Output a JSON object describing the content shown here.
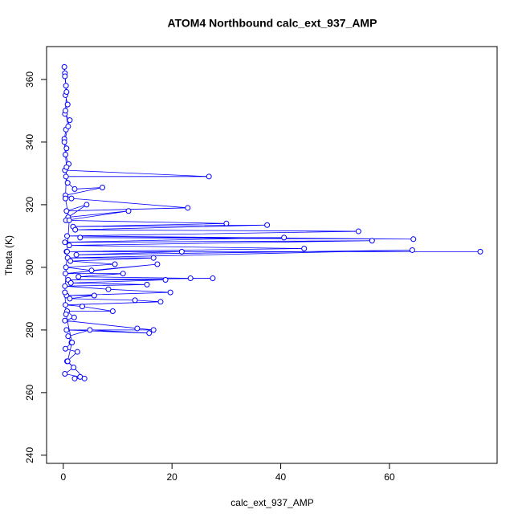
{
  "chart_data": {
    "type": "line",
    "title": "ATOM4 Northbound calc_ext_937_AMP",
    "x_label": "calc_ext_937_AMP",
    "y_label": "Theta (K)",
    "color": "#0000ff",
    "marker": "circle",
    "x": [
      0.2,
      0.3,
      0.5,
      0.4,
      0.8,
      0.3,
      1.2,
      0.5,
      0.2,
      0.6,
      0.4,
      1.0,
      0.3,
      26.8,
      0.5,
      0.8,
      2.1,
      7.2,
      0.4,
      1.5,
      22.9,
      0.6,
      4.3,
      0.9,
      12,
      0.5,
      30,
      1.8,
      37.5,
      2.2,
      54.3,
      0.7,
      64.4,
      3.1,
      40.6,
      0.3,
      56.8,
      1.1,
      44.3,
      0.6,
      76.7,
      21.8,
      2.4,
      64.2,
      0.8,
      16.6,
      1.3,
      9.5,
      0.5,
      5.2,
      17.3,
      0.4,
      11,
      2.8,
      23.4,
      27.5,
      0.9,
      18.8,
      1.4,
      15.4,
      0.3,
      8.3,
      19.7,
      0.6,
      5.7,
      1.2,
      13.2,
      17.9,
      0.4,
      3.5,
      9.1,
      0.7,
      2.0,
      0.3,
      13.6,
      16.6,
      0.6,
      15.8,
      4.9,
      0.9,
      1.5,
      0.4,
      2.6,
      0.7,
      1.9,
      0.3,
      3.1,
      2.1,
      3.9,
      0.8,
      1.6,
      0.5,
      0.3,
      0.7,
      1.1,
      0.4,
      0.6,
      0.2,
      0.9,
      0.4,
      0.6,
      0.3
    ],
    "values": [
      364,
      362,
      358,
      355,
      352,
      349,
      347,
      344,
      341,
      338,
      336,
      333,
      331,
      329,
      329,
      327,
      325,
      325.5,
      323,
      322,
      319,
      318,
      320,
      316,
      318,
      315,
      314,
      313,
      313.5,
      312,
      311.5,
      310,
      309,
      309.5,
      309.5,
      308,
      308.5,
      307,
      306,
      305,
      305,
      305,
      304,
      305.5,
      303,
      303,
      302,
      301,
      300,
      299,
      301,
      298,
      298,
      297,
      296.5,
      296.5,
      296,
      296,
      295,
      294.5,
      294,
      293,
      292,
      291,
      291,
      290,
      289.5,
      289,
      288,
      287.5,
      286,
      286,
      284,
      283,
      280.5,
      280,
      280,
      279,
      280,
      278,
      276,
      274,
      273,
      270,
      268,
      266,
      265,
      264.5,
      264.5,
      270,
      276,
      285,
      292,
      305,
      315,
      322,
      332,
      340,
      345,
      350,
      356,
      361
    ],
    "xlim": [
      -3.07,
      79.8
    ],
    "ylim": [
      237.4,
      370.5
    ],
    "xticks": [
      0,
      20,
      40,
      60
    ],
    "yticks": [
      240,
      260,
      280,
      300,
      320,
      340,
      360
    ]
  }
}
